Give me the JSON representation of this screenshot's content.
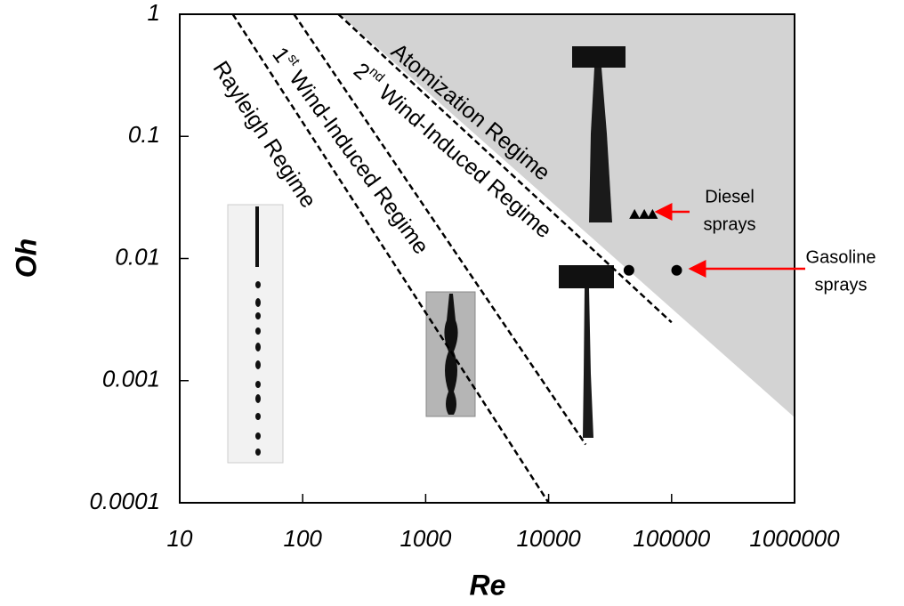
{
  "chart_data": {
    "type": "line",
    "x_label": "Re",
    "y_label": "Oh",
    "xscale": "log",
    "yscale": "log",
    "xlim": [
      10,
      1000000
    ],
    "ylim": [
      0.0001,
      1
    ],
    "xticks": [
      10,
      100,
      1000,
      10000,
      100000,
      1000000
    ],
    "yticks": [
      0.0001,
      0.001,
      0.01,
      0.1,
      1
    ],
    "series": [
      {
        "style": "dashed",
        "color": "#000000",
        "x": [
          27,
          10000
        ],
        "values": [
          1,
          0.0001
        ]
      },
      {
        "style": "dashed",
        "color": "#000000",
        "x": [
          85,
          20000
        ],
        "values": [
          1,
          0.0003
        ]
      },
      {
        "style": "dashed",
        "color": "#000000",
        "x": [
          195,
          100000
        ],
        "values": [
          1,
          0.003
        ]
      },
      {
        "style": "area",
        "color": "#d3d3d3",
        "x": [
          200,
          1000000,
          1000000
        ],
        "values": [
          1,
          1,
          0.0005
        ]
      },
      {
        "style": "marker",
        "marker": "triangle",
        "color": "#000000",
        "x": [
          50000,
          60000,
          70000
        ],
        "values": [
          0.023,
          0.023,
          0.023
        ]
      },
      {
        "style": "marker",
        "marker": "circle",
        "color": "#000000",
        "x": [
          45000,
          110000
        ],
        "values": [
          0.008,
          0.008
        ]
      }
    ],
    "annotations": [
      {
        "text": "Rayleigh Regime"
      },
      {
        "parts": [
          "1",
          "st",
          " Wind-Induced Regime"
        ]
      },
      {
        "parts": [
          "2",
          "nd",
          " Wind-Induced Regime"
        ]
      },
      {
        "text": "Atomization Regime"
      },
      {
        "lines": [
          "Diesel",
          "sprays"
        ],
        "arrow_color": "#ff0000"
      },
      {
        "lines": [
          "Gasoline",
          "sprays"
        ],
        "arrow_color": "#ff0000"
      }
    ]
  }
}
